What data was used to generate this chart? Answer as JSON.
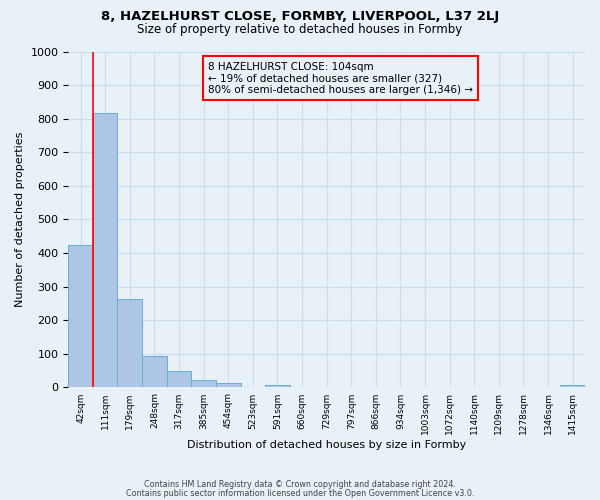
{
  "title": "8, HAZELHURST CLOSE, FORMBY, LIVERPOOL, L37 2LJ",
  "subtitle": "Size of property relative to detached houses in Formby",
  "xlabel": "Distribution of detached houses by size in Formby",
  "ylabel": "Number of detached properties",
  "footer_line1": "Contains HM Land Registry data © Crown copyright and database right 2024.",
  "footer_line2": "Contains public sector information licensed under the Open Government Licence v3.0.",
  "bin_labels": [
    "42sqm",
    "111sqm",
    "179sqm",
    "248sqm",
    "317sqm",
    "385sqm",
    "454sqm",
    "523sqm",
    "591sqm",
    "660sqm",
    "729sqm",
    "797sqm",
    "866sqm",
    "934sqm",
    "1003sqm",
    "1072sqm",
    "1140sqm",
    "1209sqm",
    "1278sqm",
    "1346sqm",
    "1415sqm"
  ],
  "bar_heights": [
    425,
    818,
    263,
    93,
    48,
    22,
    12,
    0,
    8,
    0,
    0,
    0,
    0,
    0,
    0,
    0,
    0,
    0,
    0,
    0,
    7
  ],
  "bar_color": "#adc6e5",
  "bar_edge_color": "#6aaed6",
  "property_line_bin": 1,
  "annotation_box_text": "8 HAZELHURST CLOSE: 104sqm\n← 19% of detached houses are smaller (327)\n80% of semi-detached houses are larger (1,346) →",
  "annotation_box_color": "#ff0000",
  "ylim": [
    0,
    1000
  ],
  "yticks": [
    0,
    100,
    200,
    300,
    400,
    500,
    600,
    700,
    800,
    900,
    1000
  ],
  "grid_color": "#ccddee",
  "bg_color": "#e8f0f8"
}
